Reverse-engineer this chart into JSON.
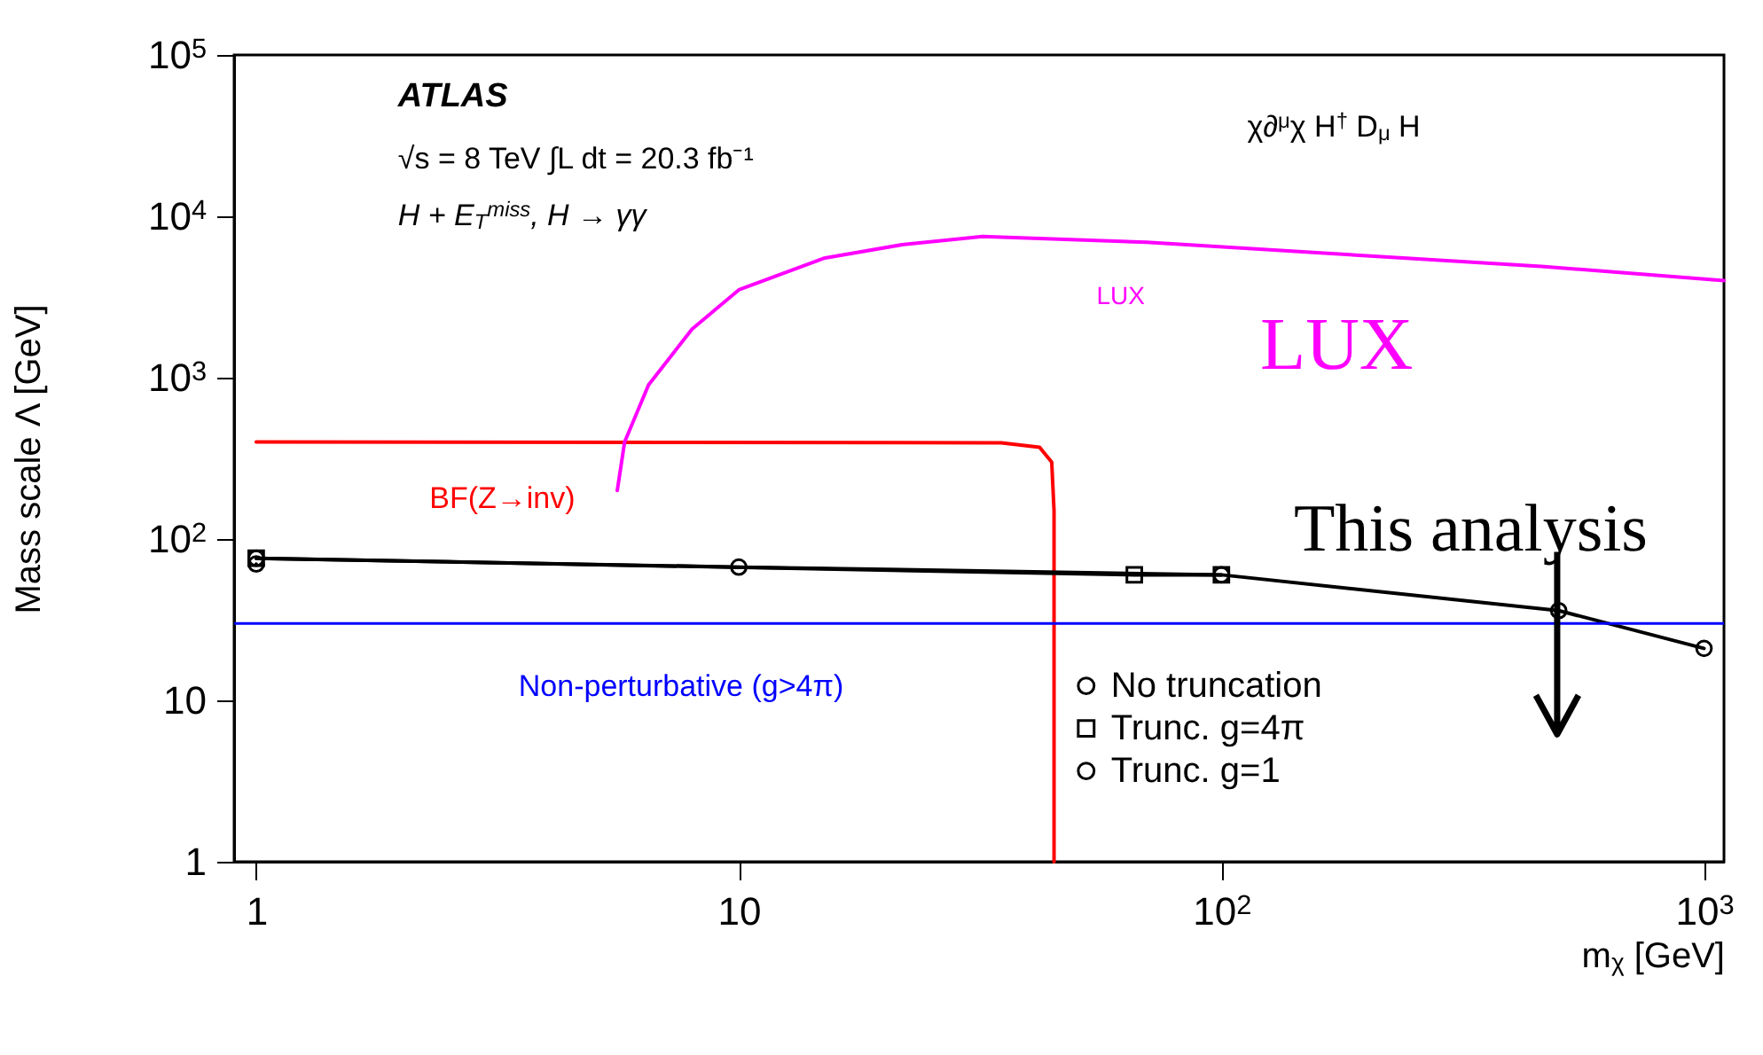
{
  "chart_data": {
    "type": "line",
    "xlabel": "m$_{χ}$ [GeV]",
    "ylabel": "Mass scale  Λ [GeV]",
    "log": "xy",
    "xlim": [
      0.9,
      1100
    ],
    "ylim": [
      1,
      100000
    ],
    "xticks": [
      1,
      10,
      {
        "value": 100,
        "label": "10$^{2}$"
      },
      {
        "value": 1000,
        "label": "10$^{3}$"
      }
    ],
    "yticks": [
      1,
      10,
      {
        "value": 100,
        "label": "10$^{2}$"
      },
      {
        "value": 1000,
        "label": "10$^{3}$"
      },
      {
        "value": 10000,
        "label": "10$^{4}$"
      },
      {
        "value": 100000,
        "label": "10$^{5}$"
      }
    ],
    "grid": false,
    "legend": "bottom right",
    "line_style": "solid",
    "series": [
      {
        "color": "#ff0000",
        "marker": "none",
        "x": [
          1,
          35,
          42,
          44.5,
          45,
          45
        ],
        "values": [
          400,
          395,
          370,
          300,
          150,
          1
        ]
      },
      {
        "color": "#ff00ff",
        "marker": "none",
        "x": [
          5.6,
          5.8,
          6.5,
          8,
          10,
          15,
          22,
          32,
          70,
          200,
          460,
          1100
        ],
        "values": [
          200,
          400,
          900,
          2000,
          3500,
          5500,
          6700,
          7500,
          6900,
          5700,
          4900,
          4000
        ]
      },
      {
        "name": "No truncation",
        "color": "#000000",
        "marker": "circle",
        "x": [
          1,
          10,
          100,
          500,
          1000
        ],
        "values": [
          76,
          67,
          60,
          36,
          21
        ]
      },
      {
        "name": "Trunc. g=4π",
        "color": "#000000",
        "marker": "square",
        "x": [
          1,
          66,
          100
        ],
        "values": [
          76,
          60,
          60
        ]
      },
      {
        "name": "Trunc. g=1",
        "color": "#000000",
        "marker": "circle",
        "x": [
          1
        ],
        "values": [
          70
        ]
      }
    ],
    "ref_lines": [
      {
        "axis": "y",
        "value": 30,
        "label": "Non-perturbative (g>4π)",
        "color": "#0000ff"
      }
    ],
    "annotations": [
      "ATLAS",
      "√s = 8 TeV ∫L dt = 20.3 fb⁻¹",
      "H + E$_{T}$$^{miss}$, H → γγ",
      "χ∂$^{μ}$χ H$^{†}$ D$_{μ}$ H",
      "LUX",
      "LUX",
      "BF(Z→inv)",
      "This analysis"
    ]
  }
}
